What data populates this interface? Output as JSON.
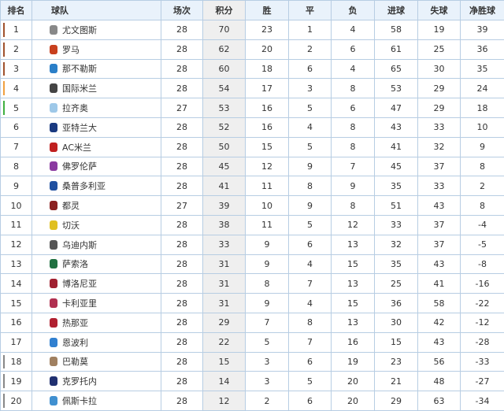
{
  "headers": [
    "排名",
    "球队",
    "场次",
    "积分",
    "胜",
    "平",
    "负",
    "进球",
    "失球",
    "净胜球"
  ],
  "zone_colors": {
    "cl": "#a0522d",
    "el": "#f0a040",
    "conf": "#40b040",
    "rel": "#888888"
  },
  "rows": [
    {
      "rank": "1",
      "team": "尤文图斯",
      "logo_color": "#888888",
      "zone": "cl",
      "played": "28",
      "points": "70",
      "w": "23",
      "d": "1",
      "l": "4",
      "gf": "58",
      "ga": "19",
      "gd": "39"
    },
    {
      "rank": "2",
      "team": "罗马",
      "logo_color": "#c8401e",
      "zone": "cl",
      "played": "28",
      "points": "62",
      "w": "20",
      "d": "2",
      "l": "6",
      "gf": "61",
      "ga": "25",
      "gd": "36"
    },
    {
      "rank": "3",
      "team": "那不勒斯",
      "logo_color": "#2a7fc8",
      "zone": "cl",
      "played": "28",
      "points": "60",
      "w": "18",
      "d": "6",
      "l": "4",
      "gf": "65",
      "ga": "30",
      "gd": "35"
    },
    {
      "rank": "4",
      "team": "国际米兰",
      "logo_color": "#444444",
      "zone": "el",
      "played": "28",
      "points": "54",
      "w": "17",
      "d": "3",
      "l": "8",
      "gf": "53",
      "ga": "29",
      "gd": "24"
    },
    {
      "rank": "5",
      "team": "拉齐奥",
      "logo_color": "#9ec8e8",
      "zone": "conf",
      "played": "27",
      "points": "53",
      "w": "16",
      "d": "5",
      "l": "6",
      "gf": "47",
      "ga": "29",
      "gd": "18"
    },
    {
      "rank": "6",
      "team": "亚特兰大",
      "logo_color": "#1a3a80",
      "zone": "",
      "played": "28",
      "points": "52",
      "w": "16",
      "d": "4",
      "l": "8",
      "gf": "43",
      "ga": "33",
      "gd": "10"
    },
    {
      "rank": "7",
      "team": "AC米兰",
      "logo_color": "#c02020",
      "zone": "",
      "played": "28",
      "points": "50",
      "w": "15",
      "d": "5",
      "l": "8",
      "gf": "41",
      "ga": "32",
      "gd": "9"
    },
    {
      "rank": "8",
      "team": "佛罗伦萨",
      "logo_color": "#8a3aa0",
      "zone": "",
      "played": "28",
      "points": "45",
      "w": "12",
      "d": "9",
      "l": "7",
      "gf": "45",
      "ga": "37",
      "gd": "8"
    },
    {
      "rank": "9",
      "team": "桑普多利亚",
      "logo_color": "#2050a0",
      "zone": "",
      "played": "28",
      "points": "41",
      "w": "11",
      "d": "8",
      "l": "9",
      "gf": "35",
      "ga": "33",
      "gd": "2"
    },
    {
      "rank": "10",
      "team": "都灵",
      "logo_color": "#8a2020",
      "zone": "",
      "played": "27",
      "points": "39",
      "w": "10",
      "d": "9",
      "l": "8",
      "gf": "51",
      "ga": "43",
      "gd": "8"
    },
    {
      "rank": "11",
      "team": "切沃",
      "logo_color": "#e0c020",
      "zone": "",
      "played": "28",
      "points": "38",
      "w": "11",
      "d": "5",
      "l": "12",
      "gf": "33",
      "ga": "37",
      "gd": "-4"
    },
    {
      "rank": "12",
      "team": "乌迪内斯",
      "logo_color": "#555555",
      "zone": "",
      "played": "28",
      "points": "33",
      "w": "9",
      "d": "6",
      "l": "13",
      "gf": "32",
      "ga": "37",
      "gd": "-5"
    },
    {
      "rank": "13",
      "team": "萨索洛",
      "logo_color": "#207040",
      "zone": "",
      "played": "28",
      "points": "31",
      "w": "9",
      "d": "4",
      "l": "15",
      "gf": "35",
      "ga": "43",
      "gd": "-8"
    },
    {
      "rank": "14",
      "team": "博洛尼亚",
      "logo_color": "#a02030",
      "zone": "",
      "played": "28",
      "points": "31",
      "w": "8",
      "d": "7",
      "l": "13",
      "gf": "25",
      "ga": "41",
      "gd": "-16"
    },
    {
      "rank": "15",
      "team": "卡利亚里",
      "logo_color": "#b03050",
      "zone": "",
      "played": "28",
      "points": "31",
      "w": "9",
      "d": "4",
      "l": "15",
      "gf": "36",
      "ga": "58",
      "gd": "-22"
    },
    {
      "rank": "16",
      "team": "热那亚",
      "logo_color": "#b02030",
      "zone": "",
      "played": "28",
      "points": "29",
      "w": "7",
      "d": "8",
      "l": "13",
      "gf": "30",
      "ga": "42",
      "gd": "-12"
    },
    {
      "rank": "17",
      "team": "恩波利",
      "logo_color": "#3080d0",
      "zone": "",
      "played": "28",
      "points": "22",
      "w": "5",
      "d": "7",
      "l": "16",
      "gf": "15",
      "ga": "43",
      "gd": "-28"
    },
    {
      "rank": "18",
      "team": "巴勒莫",
      "logo_color": "#a08060",
      "zone": "rel",
      "played": "28",
      "points": "15",
      "w": "3",
      "d": "6",
      "l": "19",
      "gf": "23",
      "ga": "56",
      "gd": "-33"
    },
    {
      "rank": "19",
      "team": "克罗托内",
      "logo_color": "#203070",
      "zone": "rel",
      "played": "28",
      "points": "14",
      "w": "3",
      "d": "5",
      "l": "20",
      "gf": "21",
      "ga": "48",
      "gd": "-27"
    },
    {
      "rank": "20",
      "team": "佩斯卡拉",
      "logo_color": "#4090d0",
      "zone": "rel",
      "played": "28",
      "points": "12",
      "w": "2",
      "d": "6",
      "l": "20",
      "gf": "29",
      "ga": "63",
      "gd": "-34"
    }
  ]
}
